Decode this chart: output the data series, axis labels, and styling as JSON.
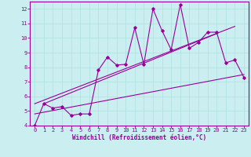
{
  "xlabel": "Windchill (Refroidissement éolien,°C)",
  "bg_color": "#cbeef0",
  "line_color": "#990099",
  "xlim": [
    -0.5,
    23.5
  ],
  "ylim": [
    4,
    12.5
  ],
  "xticks": [
    0,
    1,
    2,
    3,
    4,
    5,
    6,
    7,
    8,
    9,
    10,
    11,
    12,
    13,
    14,
    15,
    16,
    17,
    18,
    19,
    20,
    21,
    22,
    23
  ],
  "yticks": [
    4,
    5,
    6,
    7,
    8,
    9,
    10,
    11,
    12
  ],
  "series1_x": [
    0,
    1,
    2,
    3,
    4,
    5,
    6,
    7,
    8,
    9,
    10,
    11,
    12,
    13,
    14,
    15,
    16,
    17,
    18,
    19,
    20,
    21,
    22,
    23
  ],
  "series1_y": [
    4.0,
    5.5,
    5.2,
    5.3,
    4.7,
    4.8,
    4.8,
    7.8,
    8.7,
    8.15,
    8.2,
    10.7,
    8.2,
    12.0,
    10.5,
    9.2,
    12.3,
    9.3,
    9.7,
    10.4,
    10.4,
    8.3,
    8.5,
    7.3
  ],
  "series2_x": [
    0,
    23
  ],
  "series2_y": [
    4.8,
    7.5
  ],
  "series3_x": [
    0,
    22
  ],
  "series3_y": [
    5.5,
    10.8
  ],
  "series4_x": [
    1,
    20
  ],
  "series4_y": [
    5.5,
    10.3
  ],
  "grid_color": "#aae0e0",
  "tick_fontsize": 5.0,
  "xlabel_fontsize": 5.5
}
